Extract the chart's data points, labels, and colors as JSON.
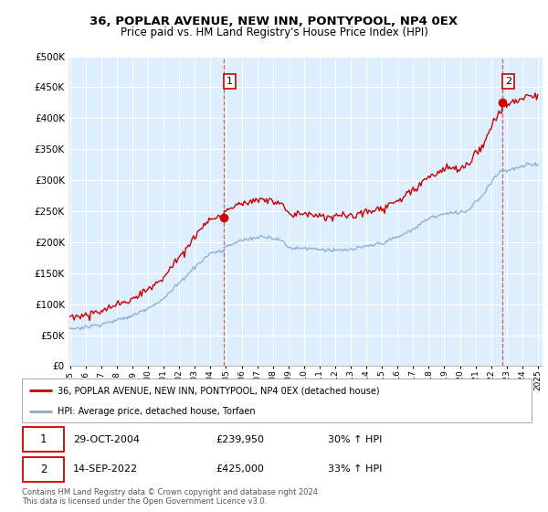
{
  "title": "36, POPLAR AVENUE, NEW INN, PONTYPOOL, NP4 0EX",
  "subtitle": "Price paid vs. HM Land Registry's House Price Index (HPI)",
  "legend_line1": "36, POPLAR AVENUE, NEW INN, PONTYPOOL, NP4 0EX (detached house)",
  "legend_line2": "HPI: Average price, detached house, Torfaen",
  "sale1_date": "29-OCT-2004",
  "sale1_price": "£239,950",
  "sale1_hpi": "30% ↑ HPI",
  "sale2_date": "14-SEP-2022",
  "sale2_price": "£425,000",
  "sale2_hpi": "33% ↑ HPI",
  "footnote1": "Contains HM Land Registry data © Crown copyright and database right 2024.",
  "footnote2": "This data is licensed under the Open Government Licence v3.0.",
  "line_color_red": "#cc0000",
  "line_color_blue": "#88aacc",
  "bg_color": "#ddeeff",
  "grid_color": "#ffffff",
  "ylim_min": 0,
  "ylim_max": 500000,
  "yticks": [
    0,
    50000,
    100000,
    150000,
    200000,
    250000,
    300000,
    350000,
    400000,
    450000,
    500000
  ],
  "sale1_x": 2004.83,
  "sale2_x": 2022.71,
  "sale1_price_val": 239950,
  "sale2_price_val": 425000
}
